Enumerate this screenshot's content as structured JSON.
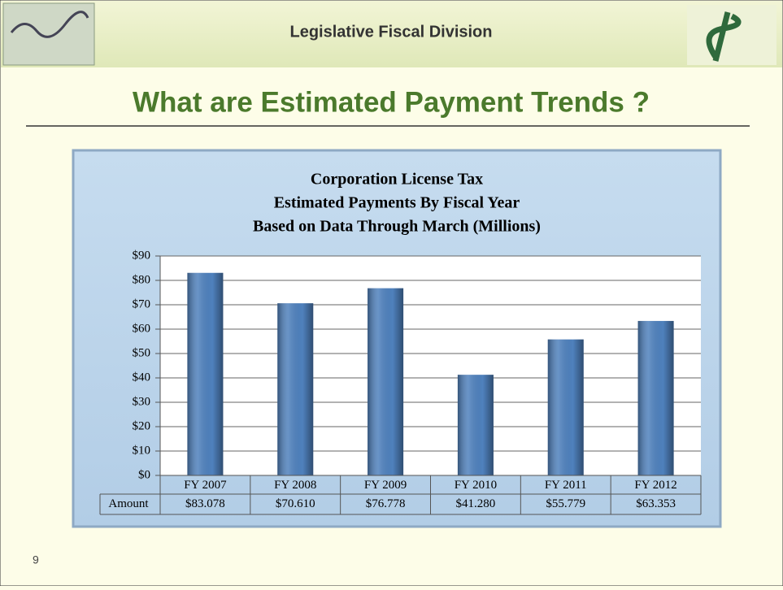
{
  "header": "Legislative Fiscal Division",
  "slide_title": "What are Estimated Payment Trends ?",
  "page_number": "9",
  "chart_data": {
    "type": "bar",
    "title": [
      "Corporation License Tax",
      "Estimated Payments By Fiscal Year",
      "Based on Data Through March (Millions)"
    ],
    "categories": [
      "FY 2007",
      "FY 2008",
      "FY 2009",
      "FY 2010",
      "FY 2011",
      "FY 2012"
    ],
    "series": [
      {
        "name": "Amount",
        "color": "#4f81bd",
        "values": [
          83.078,
          70.61,
          76.778,
          41.28,
          55.779,
          63.353
        ],
        "value_labels": [
          "$83.078",
          "$70.610",
          "$76.778",
          "$41.280",
          "$55.779",
          "$63.353"
        ]
      }
    ],
    "ylim": [
      0,
      90
    ],
    "yticks": [
      {
        "value": 0,
        "label": "$0"
      },
      {
        "value": 10,
        "label": "$10"
      },
      {
        "value": 20,
        "label": "$20"
      },
      {
        "value": 30,
        "label": "$30"
      },
      {
        "value": 40,
        "label": "$40"
      },
      {
        "value": 50,
        "label": "$50"
      },
      {
        "value": 60,
        "label": "$60"
      },
      {
        "value": 70,
        "label": "$70"
      },
      {
        "value": 80,
        "label": "$80"
      },
      {
        "value": 90,
        "label": "$90"
      }
    ],
    "grid": true
  }
}
